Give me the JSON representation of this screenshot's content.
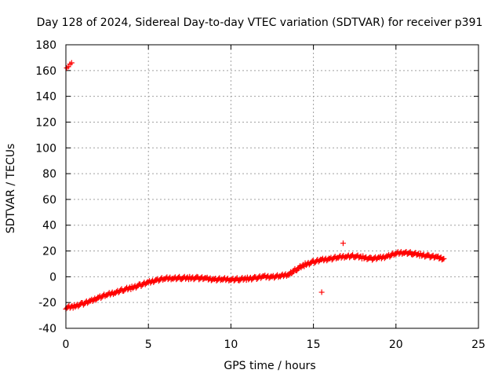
{
  "chart_data": {
    "type": "scatter",
    "title": "Day 128 of 2024, Sidereal Day-to-day VTEC variation (SDTVAR) for receiver p391",
    "xlabel": "GPS time / hours",
    "ylabel": "SDTVAR / TECUs",
    "xlim": [
      0,
      25
    ],
    "ylim": [
      -40,
      180
    ],
    "xticks": [
      0,
      5,
      10,
      15,
      20,
      25
    ],
    "yticks": [
      -40,
      -20,
      0,
      20,
      40,
      60,
      80,
      100,
      120,
      140,
      160,
      180
    ],
    "grid": true,
    "marker": "+",
    "color": "#ff0000",
    "series": [
      {
        "name": "SDTVAR",
        "trend": [
          [
            0.0,
            -24
          ],
          [
            0.5,
            -23
          ],
          [
            1.0,
            -21
          ],
          [
            1.5,
            -19
          ],
          [
            2.0,
            -16
          ],
          [
            2.5,
            -14
          ],
          [
            3.0,
            -12
          ],
          [
            3.5,
            -10
          ],
          [
            4.0,
            -8.5
          ],
          [
            4.5,
            -6.5
          ],
          [
            5.0,
            -4.5
          ],
          [
            5.5,
            -2.5
          ],
          [
            6.0,
            -1.5
          ],
          [
            6.5,
            -1
          ],
          [
            7.0,
            -1
          ],
          [
            7.5,
            -1
          ],
          [
            8.0,
            -1
          ],
          [
            8.5,
            -1.5
          ],
          [
            9.0,
            -2
          ],
          [
            9.5,
            -2
          ],
          [
            10.0,
            -2
          ],
          [
            10.5,
            -2
          ],
          [
            11.0,
            -1.5
          ],
          [
            11.5,
            -1
          ],
          [
            12.0,
            0
          ],
          [
            12.5,
            0
          ],
          [
            13.0,
            0.5
          ],
          [
            13.5,
            2
          ],
          [
            14.0,
            6
          ],
          [
            14.5,
            9.5
          ],
          [
            15.0,
            11.5
          ],
          [
            15.5,
            13
          ],
          [
            16.0,
            14
          ],
          [
            16.5,
            15
          ],
          [
            17.0,
            16
          ],
          [
            17.5,
            16
          ],
          [
            18.0,
            15
          ],
          [
            18.5,
            14
          ],
          [
            19.0,
            14.5
          ],
          [
            19.5,
            16
          ],
          [
            20.0,
            18
          ],
          [
            20.5,
            19
          ],
          [
            21.0,
            18
          ],
          [
            21.5,
            17
          ],
          [
            22.0,
            16
          ],
          [
            22.5,
            15
          ],
          [
            22.9,
            14
          ]
        ],
        "outliers": [
          [
            0.05,
            162
          ],
          [
            0.15,
            163
          ],
          [
            0.25,
            165
          ],
          [
            0.35,
            166
          ],
          [
            16.8,
            26
          ],
          [
            15.5,
            -12
          ]
        ]
      }
    ]
  }
}
